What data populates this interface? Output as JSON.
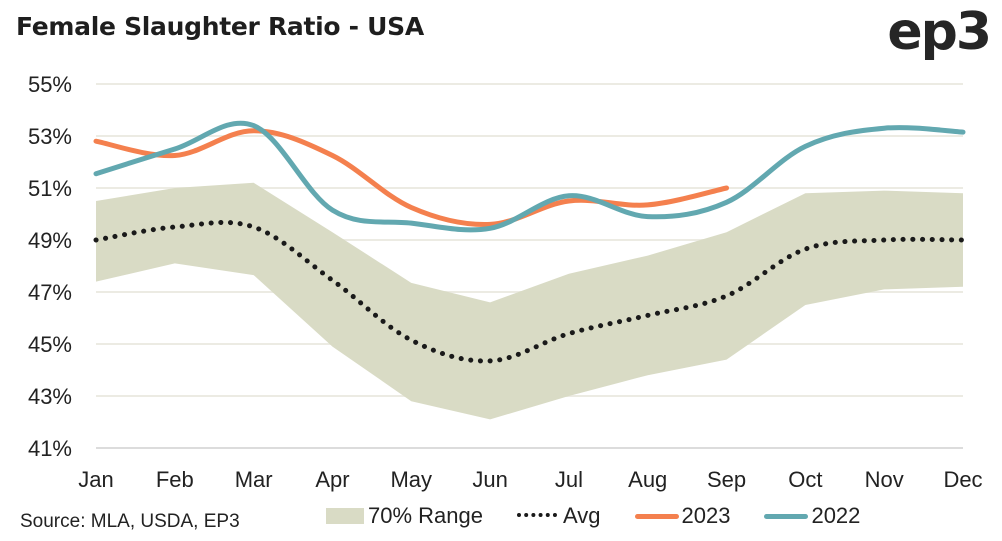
{
  "header": {
    "title": "Female Slaughter Ratio - USA",
    "logo": "ep3"
  },
  "source": "Source: MLA, USDA, EP3",
  "colors": {
    "band": "#d9dbc5",
    "avg": "#1a1a1a",
    "s2023": "#f4804e",
    "s2022": "#62a8b0",
    "grid": "#ecebe3"
  },
  "legend": [
    {
      "label": "70% Range",
      "kind": "band"
    },
    {
      "label": "Avg",
      "kind": "dots"
    },
    {
      "label": "2023",
      "kind": "line2023"
    },
    {
      "label": "2022",
      "kind": "line2022"
    }
  ],
  "chart_data": {
    "type": "line",
    "title": "Female Slaughter Ratio - USA",
    "xlabel": "",
    "ylabel": "",
    "categories": [
      "Jan",
      "Feb",
      "Mar",
      "Apr",
      "May",
      "Jun",
      "Jul",
      "Aug",
      "Sep",
      "Oct",
      "Nov",
      "Dec"
    ],
    "ylim": [
      41,
      55
    ],
    "yticks": [
      41,
      43,
      45,
      47,
      49,
      51,
      53,
      55
    ],
    "ytick_labels": [
      "41%",
      "43%",
      "45%",
      "47%",
      "49%",
      "51%",
      "53%",
      "55%"
    ],
    "grid": true,
    "legend_position": "bottom",
    "band": {
      "name": "70% Range",
      "upper": [
        50.5,
        51.0,
        51.2,
        49.3,
        47.35,
        46.6,
        47.7,
        48.4,
        49.3,
        50.8,
        50.9,
        50.8
      ],
      "lower": [
        47.4,
        48.1,
        47.65,
        44.9,
        42.8,
        42.1,
        43.0,
        43.8,
        44.4,
        46.5,
        47.1,
        47.2
      ]
    },
    "series": [
      {
        "name": "Avg",
        "style": "dotted",
        "values": [
          49.0,
          49.5,
          49.5,
          47.45,
          45.15,
          44.35,
          45.4,
          46.1,
          46.85,
          48.65,
          49.0,
          49.0
        ]
      },
      {
        "name": "2023",
        "style": "solid",
        "values": [
          52.8,
          52.25,
          53.2,
          52.25,
          50.25,
          49.6,
          50.5,
          50.35,
          51.0,
          null,
          null,
          null
        ]
      },
      {
        "name": "2022",
        "style": "solid",
        "values": [
          51.55,
          52.5,
          53.4,
          50.15,
          49.65,
          49.45,
          50.7,
          49.9,
          50.45,
          52.6,
          53.3,
          53.15
        ]
      }
    ],
    "source": "Source: MLA, USDA, EP3"
  }
}
